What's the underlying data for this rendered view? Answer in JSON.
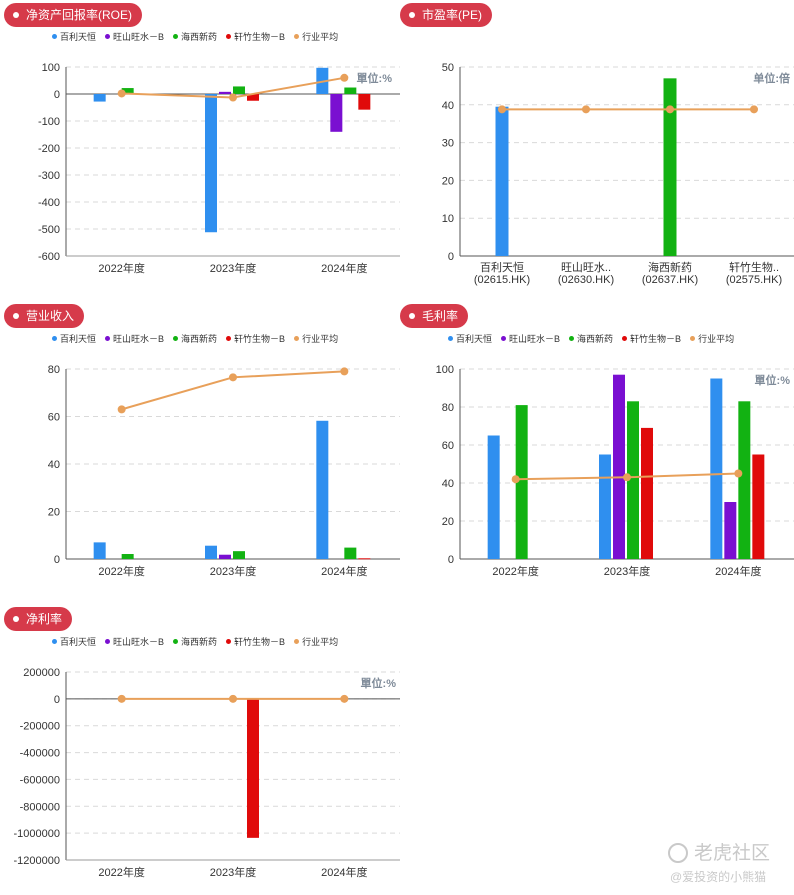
{
  "colors": {
    "badge": "#d63a4a",
    "series": [
      "#2f8fef",
      "#7a0fd1",
      "#12b212",
      "#e00a0a",
      "#e8a05a"
    ]
  },
  "legend": [
    {
      "label": "百利天恒",
      "color": "#2f8fef"
    },
    {
      "label": "旺山旺水－B",
      "color": "#7a0fd1"
    },
    {
      "label": "海西新药",
      "color": "#12b212"
    },
    {
      "label": "轩竹生物－B",
      "color": "#e00a0a"
    },
    {
      "label": "行业平均",
      "color": "#e8a05a"
    }
  ],
  "panels": {
    "roe": {
      "title": "净资产回报率(ROE)",
      "unit": "單位:%"
    },
    "pe": {
      "title": "市盈率(PE)",
      "unit": "单位:倍"
    },
    "revenue": {
      "title": "营业收入",
      "unit": ""
    },
    "gross": {
      "title": "毛利率",
      "unit": "單位:%"
    },
    "net": {
      "title": "净利率",
      "unit": "單位:%"
    }
  },
  "watermark": {
    "brand": "老虎社区",
    "author": "@爱投资的小熊猫"
  },
  "chart_data": [
    {
      "id": "roe",
      "type": "bar",
      "title": "净资产回报率(ROE)",
      "categories": [
        "2022年度",
        "2023年度",
        "2024年度"
      ],
      "ylim": [
        -600,
        100
      ],
      "yticks": [
        100,
        0,
        -100,
        -200,
        -300,
        -400,
        -500,
        -600
      ],
      "grid": true,
      "legend_position": "top",
      "series": [
        {
          "name": "百利天恒",
          "values": [
            -28,
            -512,
            97
          ]
        },
        {
          "name": "旺山旺水－B",
          "values": [
            null,
            8,
            -140
          ]
        },
        {
          "name": "海西新药",
          "values": [
            22,
            28,
            24
          ]
        },
        {
          "name": "轩竹生物－B",
          "values": [
            null,
            -25,
            -58
          ]
        }
      ],
      "line": {
        "name": "行业平均",
        "values": [
          2,
          -13,
          60
        ]
      }
    },
    {
      "id": "pe",
      "type": "bar",
      "title": "市盈率(PE)",
      "categories": [
        "百利天恒\n(02615.HK)",
        "旺山旺水..\n(02630.HK)",
        "海西新药\n(02637.HK)",
        "轩竹生物..\n(02575.HK)"
      ],
      "ylim": [
        0,
        50
      ],
      "yticks": [
        50,
        40,
        30,
        20,
        10,
        0
      ],
      "grid": true,
      "values": [
        39.5,
        null,
        47,
        null
      ],
      "bar_color": [
        "#2f8fef",
        "#7a0fd1",
        "#12b212",
        "#e00a0a"
      ],
      "line": {
        "name": "行业平均",
        "values": [
          38.8,
          38.8,
          38.8,
          38.8
        ]
      }
    },
    {
      "id": "revenue",
      "type": "bar",
      "title": "营业收入",
      "categories": [
        "2022年度",
        "2023年度",
        "2024年度"
      ],
      "ylim": [
        0,
        80
      ],
      "yticks": [
        80,
        60,
        40,
        20,
        0
      ],
      "grid": true,
      "legend_position": "top",
      "series": [
        {
          "name": "百利天恒",
          "values": [
            7.0,
            5.6,
            58.2
          ]
        },
        {
          "name": "旺山旺水－B",
          "values": [
            null,
            1.8,
            null
          ]
        },
        {
          "name": "海西新药",
          "values": [
            2.1,
            3.3,
            4.8
          ]
        },
        {
          "name": "轩竹生物－B",
          "values": [
            null,
            null,
            0.3
          ]
        }
      ],
      "line": {
        "name": "行业平均",
        "values": [
          63,
          76.5,
          79
        ]
      }
    },
    {
      "id": "gross",
      "type": "bar",
      "title": "毛利率",
      "categories": [
        "2022年度",
        "2023年度",
        "2024年度"
      ],
      "ylim": [
        0,
        100
      ],
      "yticks": [
        100,
        80,
        60,
        40,
        20,
        0
      ],
      "grid": true,
      "legend_position": "top",
      "series": [
        {
          "name": "百利天恒",
          "values": [
            65,
            55,
            95
          ]
        },
        {
          "name": "旺山旺水－B",
          "values": [
            null,
            97,
            30
          ]
        },
        {
          "name": "海西新药",
          "values": [
            81,
            83,
            83
          ]
        },
        {
          "name": "轩竹生物－B",
          "values": [
            null,
            69,
            55
          ]
        }
      ],
      "line": {
        "name": "行业平均",
        "values": [
          42,
          43,
          45
        ]
      }
    },
    {
      "id": "net",
      "type": "bar",
      "title": "净利率",
      "categories": [
        "2022年度",
        "2023年度",
        "2024年度"
      ],
      "ylim": [
        -1200000,
        200000
      ],
      "yticks": [
        200000,
        0,
        -200000,
        -400000,
        -600000,
        -800000,
        -1000000,
        -1200000
      ],
      "grid": true,
      "legend_position": "top",
      "series": [
        {
          "name": "百利天恒",
          "values": [
            null,
            null,
            null
          ]
        },
        {
          "name": "旺山旺水－B",
          "values": [
            null,
            null,
            null
          ]
        },
        {
          "name": "海西新药",
          "values": [
            null,
            null,
            null
          ]
        },
        {
          "name": "轩竹生物－B",
          "values": [
            null,
            -1035000,
            null
          ]
        }
      ],
      "line": {
        "name": "行业平均",
        "values": [
          0,
          0,
          0
        ]
      }
    }
  ]
}
